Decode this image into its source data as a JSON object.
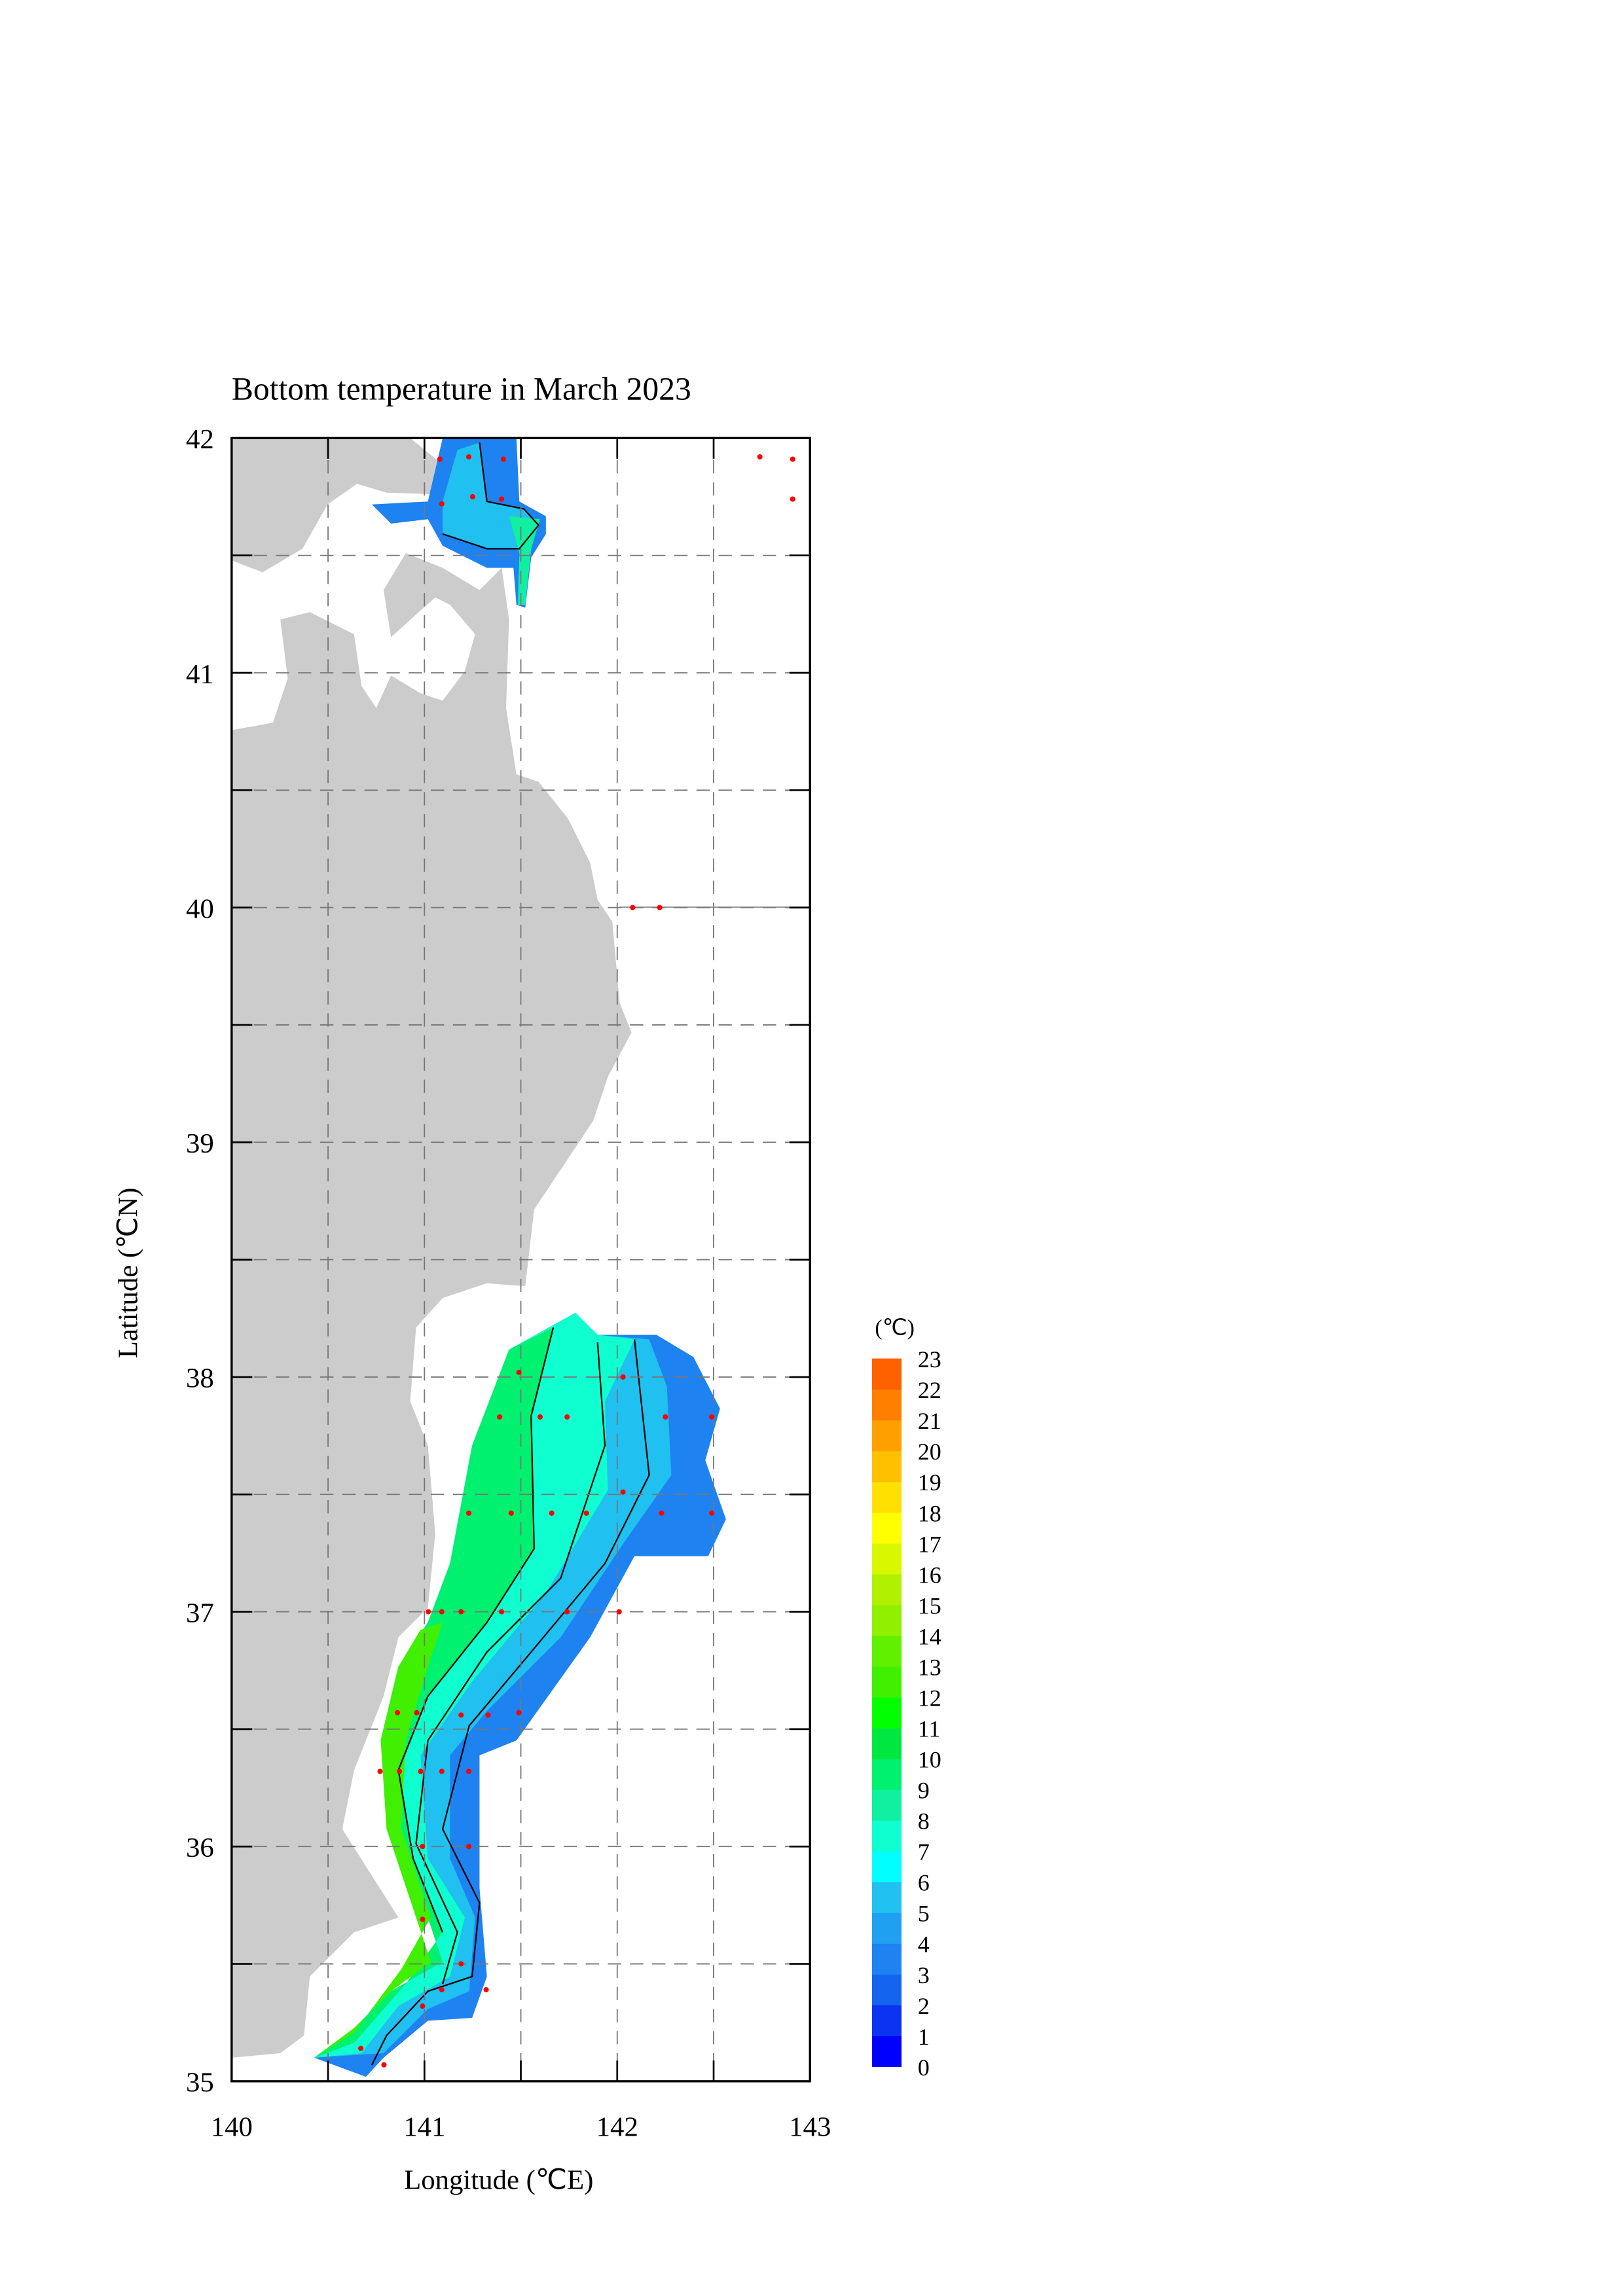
{
  "title": "Bottom temperature in March 2023",
  "xlabel": "Longitude (℃E)",
  "ylabel": "Latitude (℃N)",
  "colorbar_unit": "(℃)",
  "xlim": [
    140,
    143
  ],
  "ylim": [
    35,
    42
  ],
  "x_ticks": [
    "140",
    "141",
    "142",
    "143"
  ],
  "y_ticks": [
    "35",
    "36",
    "37",
    "38",
    "39",
    "40",
    "41",
    "42"
  ],
  "grid": "dashed, every 0.5 degree",
  "land_color": "#cccccc",
  "station_color": "#ff0000",
  "colorbar": {
    "labels": [
      "0",
      "1",
      "2",
      "3",
      "4",
      "5",
      "6",
      "7",
      "8",
      "9",
      "10",
      "11",
      "12",
      "13",
      "14",
      "15",
      "16",
      "17",
      "18",
      "19",
      "20",
      "21",
      "22",
      "23"
    ],
    "colors": [
      "#0000ff",
      "#0a32f0",
      "#1464f0",
      "#1e82f0",
      "#20a0f0",
      "#20c0f0",
      "#00ffff",
      "#10ffd0",
      "#10f0a0",
      "#00f070",
      "#00e840",
      "#00ff00",
      "#40f000",
      "#60f000",
      "#90f000",
      "#b0f000",
      "#d8f800",
      "#ffff00",
      "#ffe000",
      "#ffc000",
      "#ffa000",
      "#ff8000",
      "#ff6000"
    ]
  },
  "stations": [
    [
      141.08,
      41.91
    ],
    [
      141.23,
      41.92
    ],
    [
      141.41,
      41.91
    ],
    [
      142.74,
      41.92
    ],
    [
      142.91,
      41.91
    ],
    [
      142.91,
      41.74
    ],
    [
      141.09,
      41.72
    ],
    [
      141.25,
      41.75
    ],
    [
      141.4,
      41.74
    ],
    [
      142.08,
      40.0
    ],
    [
      142.22,
      40.0
    ],
    [
      141.49,
      38.02
    ],
    [
      141.39,
      37.83
    ],
    [
      141.6,
      37.83
    ],
    [
      141.74,
      37.83
    ],
    [
      142.03,
      38.0
    ],
    [
      142.25,
      37.83
    ],
    [
      142.49,
      37.83
    ],
    [
      141.23,
      37.42
    ],
    [
      141.45,
      37.42
    ],
    [
      141.66,
      37.42
    ],
    [
      141.84,
      37.42
    ],
    [
      142.03,
      37.51
    ],
    [
      142.23,
      37.42
    ],
    [
      142.49,
      37.42
    ],
    [
      141.02,
      37.0
    ],
    [
      141.09,
      37.0
    ],
    [
      141.19,
      37.0
    ],
    [
      141.4,
      37.0
    ],
    [
      141.74,
      37.0
    ],
    [
      142.01,
      37.0
    ],
    [
      140.86,
      36.57
    ],
    [
      140.96,
      36.57
    ],
    [
      141.19,
      36.56
    ],
    [
      141.33,
      36.56
    ],
    [
      141.49,
      36.57
    ],
    [
      140.77,
      36.32
    ],
    [
      140.87,
      36.32
    ],
    [
      140.98,
      36.32
    ],
    [
      141.09,
      36.32
    ],
    [
      141.23,
      36.32
    ],
    [
      140.99,
      36.0
    ],
    [
      141.23,
      36.0
    ],
    [
      140.99,
      35.69
    ],
    [
      141.19,
      35.5
    ],
    [
      141.09,
      35.39
    ],
    [
      141.32,
      35.39
    ],
    [
      140.99,
      35.32
    ],
    [
      140.67,
      35.14
    ],
    [
      140.79,
      35.07
    ]
  ]
}
